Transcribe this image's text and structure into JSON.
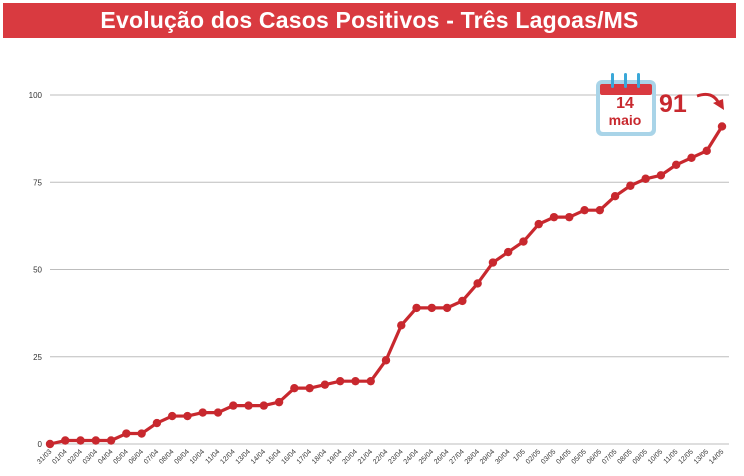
{
  "title": "Evolução dos Casos Positivos - Três Lagoas/MS",
  "colors": {
    "title_bg": "#d93a40",
    "title_text": "#ffffff",
    "line": "#c8282e",
    "grid": "#bdbdbd",
    "calendar_top": "#d93a40",
    "calendar_ring": "#3aa8d8",
    "calendar_frame": "#a9d4e8"
  },
  "callout": {
    "calendar_icon": "calendar-icon",
    "day": "14",
    "month": "maio",
    "value": "91",
    "arrow_icon": "curved-arrow-icon"
  },
  "chart_data": {
    "type": "line",
    "title": "Evolução dos Casos Positivos - Três Lagoas/MS",
    "xlabel": "",
    "ylabel": "",
    "ylim": [
      0,
      100
    ],
    "yticks": [
      0,
      25,
      50,
      75,
      100
    ],
    "grid": true,
    "x": [
      "31/03",
      "01/04",
      "02/04",
      "03/04",
      "04/04",
      "05/04",
      "06/04",
      "07/04",
      "08/04",
      "09/04",
      "10/04",
      "11/04",
      "12/04",
      "13/04",
      "14/04",
      "15/04",
      "16/04",
      "17/04",
      "18/04",
      "19/04",
      "20/04",
      "21/04",
      "22/04",
      "23/04",
      "24/04",
      "25/04",
      "26/04",
      "27/04",
      "28/04",
      "29/04",
      "30/04",
      "1/05",
      "02/05",
      "03/05",
      "04/05",
      "05/05",
      "06/05",
      "07/05",
      "08/05",
      "09/05",
      "10/05",
      "11/05",
      "12/05",
      "13/05",
      "14/05"
    ],
    "series": [
      {
        "values": [
          0,
          1,
          1,
          1,
          1,
          3,
          3,
          6,
          8,
          8,
          9,
          9,
          11,
          11,
          11,
          12,
          16,
          16,
          17,
          18,
          18,
          18,
          24,
          34,
          39,
          39,
          39,
          41,
          46,
          52,
          55,
          58,
          63,
          65,
          65,
          67,
          67,
          71,
          74,
          76,
          77,
          80,
          82,
          84,
          91
        ]
      }
    ]
  }
}
